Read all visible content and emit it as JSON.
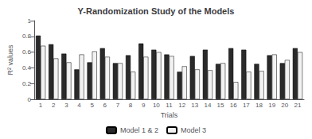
{
  "chart_data": {
    "type": "bar",
    "title": "Y-Randomization Study of the Models",
    "xlabel": "Trials",
    "ylabel": "R² values",
    "categories": [
      "1",
      "2",
      "3",
      "4",
      "5",
      "6",
      "7",
      "8",
      "9",
      "10",
      "11",
      "12",
      "13",
      "14",
      "15",
      "16",
      "17",
      "18",
      "19",
      "20",
      "21"
    ],
    "series": [
      {
        "name": "Model 1 & 2",
        "color": "#2a2a2a",
        "values": [
          0.81,
          0.7,
          0.58,
          0.38,
          0.47,
          0.65,
          0.46,
          0.56,
          0.71,
          0.63,
          0.57,
          0.35,
          0.55,
          0.63,
          0.45,
          0.65,
          0.63,
          0.45,
          0.56,
          0.46,
          0.65
        ]
      },
      {
        "name": "Model 3",
        "color": "#f2f2f2",
        "values": [
          0.68,
          0.52,
          0.47,
          0.57,
          0.61,
          0.54,
          0.46,
          0.35,
          0.54,
          0.6,
          0.55,
          0.42,
          0.38,
          0.37,
          0.46,
          0.22,
          0.35,
          0.36,
          0.57,
          0.5,
          0.6
        ]
      }
    ],
    "ylim": [
      0,
      1
    ],
    "yticks": [
      0,
      0.2,
      0.4,
      0.6,
      0.8,
      1
    ],
    "grid": false,
    "legend": "bottom"
  }
}
